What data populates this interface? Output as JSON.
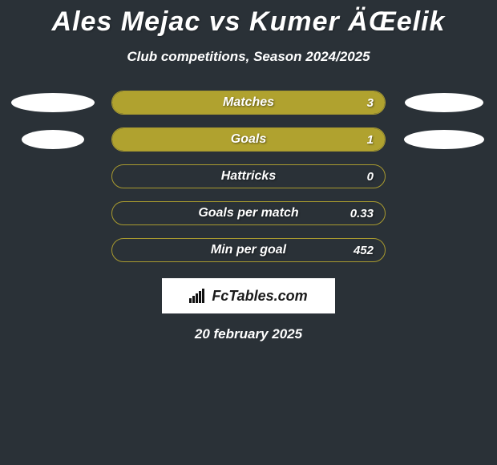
{
  "title": "Ales Mejac vs Kumer ÄŒelik",
  "subtitle": "Club competitions, Season 2024/2025",
  "background_color": "#2a3137",
  "bar_border_color": "#a89a2f",
  "bar_fill_color": "#b0a22f",
  "text_color": "#ffffff",
  "rows": [
    {
      "label": "Matches",
      "value": "3",
      "fill_pct": 100,
      "left_ellipse": {
        "show": true,
        "w": 104,
        "h": 24
      },
      "right_ellipse": {
        "show": true,
        "w": 98,
        "h": 24
      }
    },
    {
      "label": "Goals",
      "value": "1",
      "fill_pct": 100,
      "left_ellipse": {
        "show": true,
        "w": 78,
        "h": 24
      },
      "right_ellipse": {
        "show": true,
        "w": 100,
        "h": 24
      }
    },
    {
      "label": "Hattricks",
      "value": "0",
      "fill_pct": 0,
      "left_ellipse": {
        "show": false
      },
      "right_ellipse": {
        "show": false
      }
    },
    {
      "label": "Goals per match",
      "value": "0.33",
      "fill_pct": 0,
      "left_ellipse": {
        "show": false
      },
      "right_ellipse": {
        "show": false
      }
    },
    {
      "label": "Min per goal",
      "value": "452",
      "fill_pct": 0,
      "left_ellipse": {
        "show": false
      },
      "right_ellipse": {
        "show": false
      }
    }
  ],
  "logo_text": "FcTables.com",
  "date_text": "20 february 2025"
}
